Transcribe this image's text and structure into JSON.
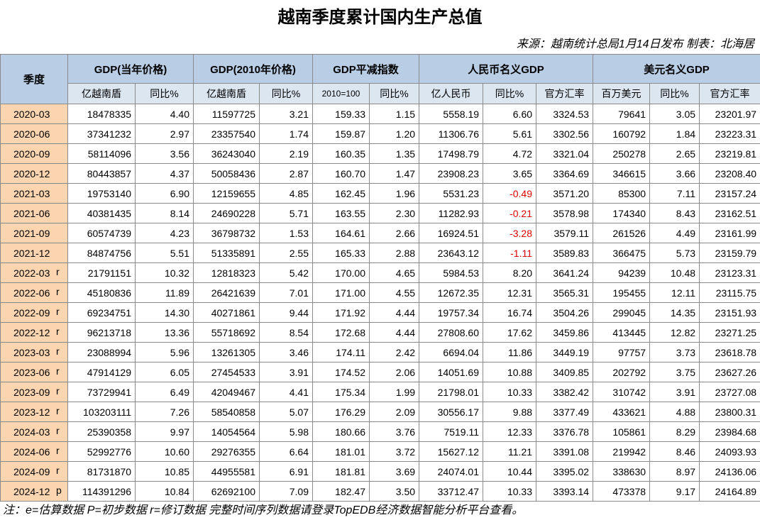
{
  "header": {
    "title": "越南季度累计国内生产总值",
    "source": "来源：越南统计总局1月14日发布  制表：北海居"
  },
  "table": {
    "quarter_header": "季度",
    "groups": [
      {
        "label": "GDP(当年价格)",
        "span": 2
      },
      {
        "label": "GDP(2010年价格)",
        "span": 2
      },
      {
        "label": "GDP平减指数",
        "span": 2
      },
      {
        "label": "人民币名义GDP",
        "span": 3
      },
      {
        "label": "美元名义GDP",
        "span": 3
      }
    ],
    "subheaders": [
      "亿越南盾",
      "同比%",
      "亿越南盾",
      "同比%",
      "2010=100",
      "同比%",
      "亿人民币",
      "同比%",
      "官方汇率",
      "百万美元",
      "同比%",
      "官方汇率"
    ],
    "rows": [
      {
        "quarter": "2020-03",
        "cells": [
          "18478335",
          "4.40",
          "11597725",
          "3.21",
          "159.33",
          "1.15",
          "5558.19",
          "6.60",
          "3324.53",
          "79641",
          "3.05",
          "23201.97"
        ]
      },
      {
        "quarter": "2020-06",
        "cells": [
          "37341232",
          "2.97",
          "23357540",
          "1.74",
          "159.87",
          "1.20",
          "11306.76",
          "5.61",
          "3302.56",
          "160792",
          "1.84",
          "23223.31"
        ]
      },
      {
        "quarter": "2020-09",
        "cells": [
          "58114096",
          "3.56",
          "36243040",
          "2.19",
          "160.35",
          "1.35",
          "17498.79",
          "4.72",
          "3321.04",
          "250278",
          "2.65",
          "23219.81"
        ]
      },
      {
        "quarter": "2020-12",
        "cells": [
          "80443857",
          "4.37",
          "50058436",
          "2.87",
          "160.70",
          "1.47",
          "23908.23",
          "3.65",
          "3364.69",
          "346615",
          "3.66",
          "23208.40"
        ]
      },
      {
        "quarter": "2021-03",
        "cells": [
          "19753140",
          "6.90",
          "12159655",
          "4.85",
          "162.45",
          "1.96",
          "5531.23",
          "-0.49",
          "3571.20",
          "85300",
          "7.11",
          "23157.24"
        ]
      },
      {
        "quarter": "2021-06",
        "cells": [
          "40381435",
          "8.14",
          "24690228",
          "5.71",
          "163.55",
          "2.30",
          "11282.93",
          "-0.21",
          "3578.98",
          "174340",
          "8.43",
          "23162.51"
        ]
      },
      {
        "quarter": "2021-09",
        "cells": [
          "60574739",
          "4.23",
          "36798732",
          "1.53",
          "164.61",
          "2.66",
          "16924.51",
          "-3.28",
          "3579.11",
          "261526",
          "4.49",
          "23161.99"
        ]
      },
      {
        "quarter": "2021-12",
        "cells": [
          "84874756",
          "5.51",
          "51335891",
          "2.55",
          "165.33",
          "2.88",
          "23643.12",
          "-1.11",
          "3589.83",
          "366475",
          "5.73",
          "23159.79"
        ]
      },
      {
        "quarter": "2022-03",
        "flag": "r",
        "cells": [
          "21791151",
          "10.32",
          "12818323",
          "5.42",
          "170.00",
          "4.65",
          "5984.53",
          "8.20",
          "3641.24",
          "94239",
          "10.48",
          "23123.31"
        ]
      },
      {
        "quarter": "2022-06",
        "flag": "r",
        "cells": [
          "45180836",
          "11.89",
          "26421639",
          "7.01",
          "171.00",
          "4.55",
          "12672.35",
          "12.31",
          "3565.31",
          "195455",
          "12.11",
          "23115.75"
        ]
      },
      {
        "quarter": "2022-09",
        "flag": "r",
        "cells": [
          "69234751",
          "14.30",
          "40271861",
          "9.44",
          "171.92",
          "4.44",
          "19757.34",
          "16.74",
          "3504.26",
          "299045",
          "14.35",
          "23151.93"
        ]
      },
      {
        "quarter": "2022-12",
        "flag": "r",
        "cells": [
          "96213718",
          "13.36",
          "55718692",
          "8.54",
          "172.68",
          "4.44",
          "27808.60",
          "17.62",
          "3459.86",
          "413445",
          "12.82",
          "23271.25"
        ]
      },
      {
        "quarter": "2023-03",
        "flag": "r",
        "cells": [
          "23088994",
          "5.96",
          "13261305",
          "3.46",
          "174.11",
          "2.42",
          "6694.04",
          "11.86",
          "3449.19",
          "97757",
          "3.73",
          "23618.78"
        ]
      },
      {
        "quarter": "2023-06",
        "flag": "r",
        "cells": [
          "47914129",
          "6.05",
          "27454533",
          "3.91",
          "174.52",
          "2.06",
          "14051.69",
          "10.88",
          "3409.85",
          "202792",
          "3.75",
          "23627.26"
        ]
      },
      {
        "quarter": "2023-09",
        "flag": "r",
        "cells": [
          "73729941",
          "6.49",
          "42049467",
          "4.41",
          "175.34",
          "1.99",
          "21798.01",
          "10.33",
          "3382.42",
          "310742",
          "3.91",
          "23727.08"
        ]
      },
      {
        "quarter": "2023-12",
        "flag": "r",
        "cells": [
          "103203111",
          "7.26",
          "58540858",
          "5.07",
          "176.29",
          "2.09",
          "30556.17",
          "9.88",
          "3377.49",
          "433621",
          "4.88",
          "23800.31"
        ]
      },
      {
        "quarter": "2024-03",
        "flag": "r",
        "cells": [
          "25390358",
          "9.97",
          "14054564",
          "5.98",
          "180.66",
          "3.76",
          "7519.11",
          "12.33",
          "3376.78",
          "105861",
          "8.29",
          "23984.68"
        ]
      },
      {
        "quarter": "2024-06",
        "flag": "r",
        "cells": [
          "52992776",
          "10.60",
          "29276355",
          "6.64",
          "181.01",
          "3.72",
          "15627.12",
          "11.21",
          "3391.08",
          "219942",
          "8.46",
          "24093.93"
        ]
      },
      {
        "quarter": "2024-09",
        "flag": "r",
        "cells": [
          "81731870",
          "10.85",
          "44955581",
          "6.91",
          "181.81",
          "3.69",
          "24074.01",
          "10.44",
          "3395.02",
          "338630",
          "8.97",
          "24136.06"
        ]
      },
      {
        "quarter": "2024-12",
        "flag": "p",
        "cells": [
          "114391296",
          "10.84",
          "62692100",
          "7.09",
          "182.47",
          "3.50",
          "33712.47",
          "10.33",
          "3393.14",
          "473378",
          "9.17",
          "24164.89"
        ]
      }
    ]
  },
  "footnote": "注：e=估算数据 P=初步数据 r=修订数据 完整时间序列数据请登录TopEDB经济数据智能分析平台查看。"
}
